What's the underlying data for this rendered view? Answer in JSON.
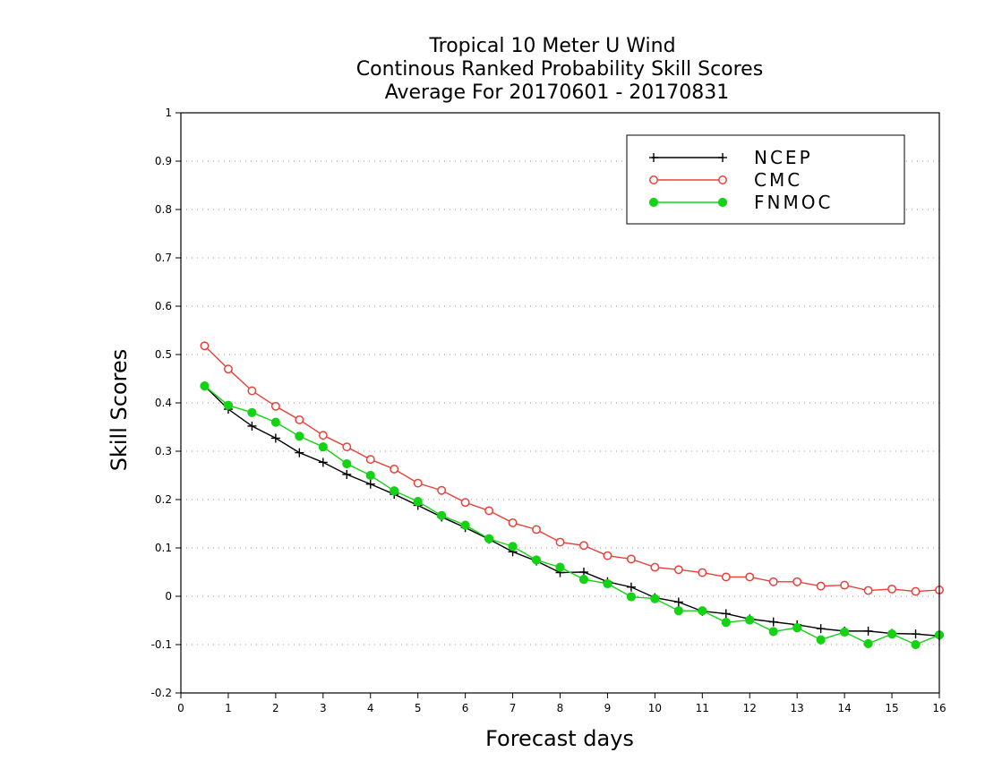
{
  "chart_data": {
    "type": "line",
    "title_lines": [
      "Tropical 10 Meter U Wind",
      "Continous Ranked Probability Skill Scores",
      "Average For 20170601 - 20170831"
    ],
    "xlabel": "Forecast days",
    "ylabel": "Skill Scores",
    "xlim": [
      0,
      16
    ],
    "ylim": [
      -0.2,
      1
    ],
    "x_ticks": [
      "0",
      "1",
      "2",
      "3",
      "4",
      "5",
      "6",
      "7",
      "8",
      "9",
      "10",
      "11",
      "12",
      "13",
      "14",
      "15",
      "16"
    ],
    "y_ticks": [
      "1",
      "0.9",
      "0.8",
      "0.7",
      "0.6",
      "0.5",
      "0.4",
      "0.3",
      "0.2",
      "0.1",
      "0",
      "-0.1",
      "-0.2"
    ],
    "grid": "horizontal dotted",
    "legend_position": "top-right",
    "x": [
      0.5,
      1,
      1.5,
      2,
      2.5,
      3,
      3.5,
      4,
      4.5,
      5,
      5.5,
      6,
      6.5,
      7,
      7.5,
      8,
      8.5,
      9,
      9.5,
      10,
      10.5,
      11,
      11.5,
      12,
      12.5,
      13,
      13.5,
      14,
      14.5,
      15,
      15.5,
      16
    ],
    "series": [
      {
        "name": "NCEP",
        "color": "#000000",
        "marker": "plus",
        "values": [
          0.435,
          0.387,
          0.352,
          0.327,
          0.297,
          0.277,
          0.252,
          0.232,
          0.211,
          0.188,
          0.164,
          0.142,
          0.118,
          0.092,
          0.073,
          0.049,
          0.05,
          0.03,
          0.019,
          -0.003,
          -0.012,
          -0.031,
          -0.036,
          -0.047,
          -0.053,
          -0.059,
          -0.067,
          -0.072,
          -0.072,
          -0.077,
          -0.078,
          -0.082
        ]
      },
      {
        "name": "CMC",
        "color": "#e8413b",
        "marker": "open-circle",
        "values": [
          0.518,
          0.47,
          0.425,
          0.393,
          0.365,
          0.333,
          0.309,
          0.283,
          0.263,
          0.234,
          0.219,
          0.194,
          0.177,
          0.152,
          0.138,
          0.112,
          0.105,
          0.084,
          0.077,
          0.06,
          0.055,
          0.049,
          0.04,
          0.04,
          0.03,
          0.03,
          0.021,
          0.023,
          0.012,
          0.015,
          0.01,
          0.013
        ]
      },
      {
        "name": "FNMOC",
        "color": "#14d314",
        "marker": "filled-circle",
        "values": [
          0.435,
          0.395,
          0.38,
          0.36,
          0.331,
          0.309,
          0.274,
          0.25,
          0.218,
          0.196,
          0.167,
          0.147,
          0.119,
          0.103,
          0.075,
          0.06,
          0.035,
          0.026,
          -0.001,
          -0.005,
          -0.03,
          -0.03,
          -0.054,
          -0.049,
          -0.073,
          -0.065,
          -0.09,
          -0.074,
          -0.098,
          -0.078,
          -0.1,
          -0.08
        ]
      }
    ]
  }
}
